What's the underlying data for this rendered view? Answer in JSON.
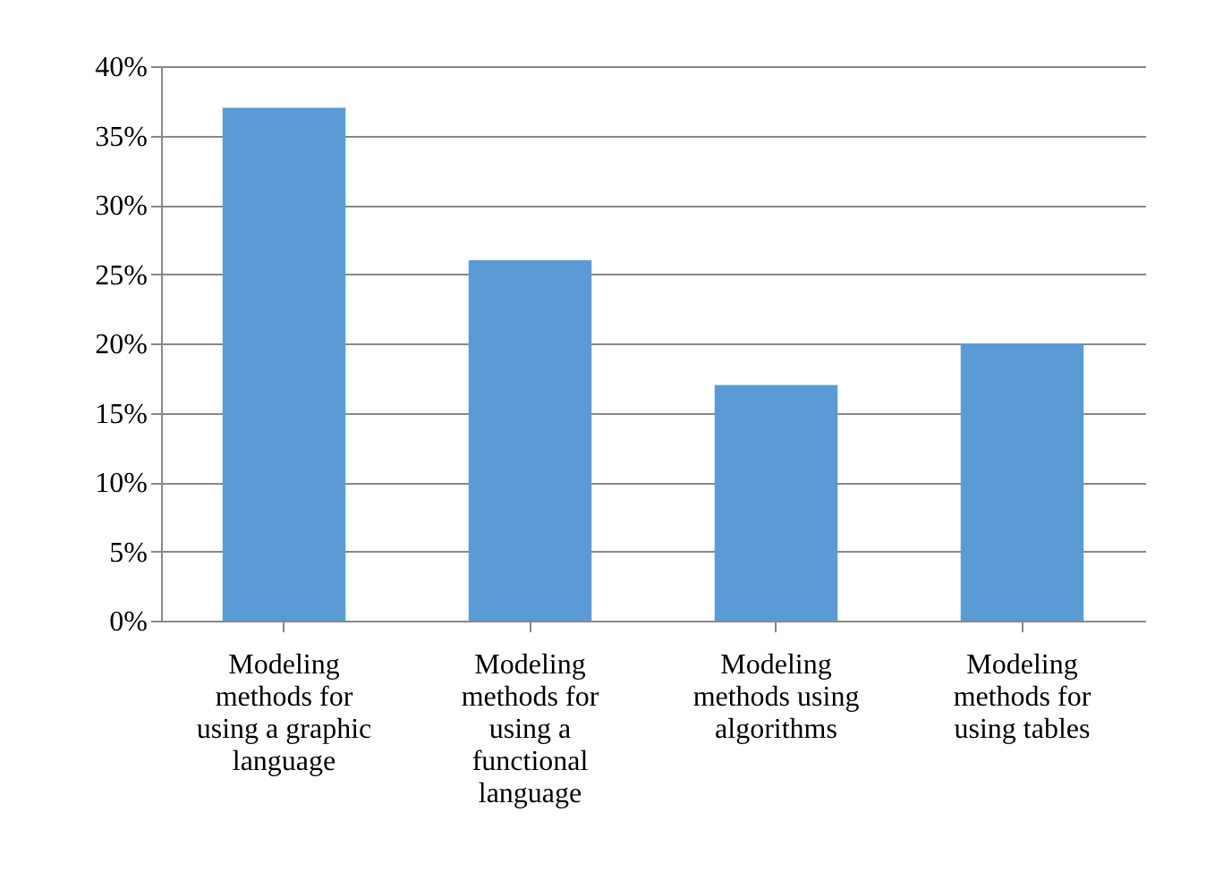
{
  "chart_data": {
    "type": "bar",
    "categories": [
      "Modeling methods for using a graphic language",
      "Modeling methods for using a functional language",
      "Modeling methods using algorithms",
      "Modeling methods for using tables"
    ],
    "values": [
      37,
      26,
      17,
      20
    ],
    "color": "#5b9bd5",
    "ylim": [
      0,
      40
    ],
    "yticks": [
      {
        "value": 0,
        "label": "0%"
      },
      {
        "value": 5,
        "label": "5%"
      },
      {
        "value": 10,
        "label": "10%"
      },
      {
        "value": 15,
        "label": "15%"
      },
      {
        "value": 20,
        "label": "20%"
      },
      {
        "value": 25,
        "label": "25%"
      },
      {
        "value": 30,
        "label": "30%"
      },
      {
        "value": 35,
        "label": "35%"
      },
      {
        "value": 40,
        "label": "40%"
      }
    ],
    "grid": "y"
  }
}
